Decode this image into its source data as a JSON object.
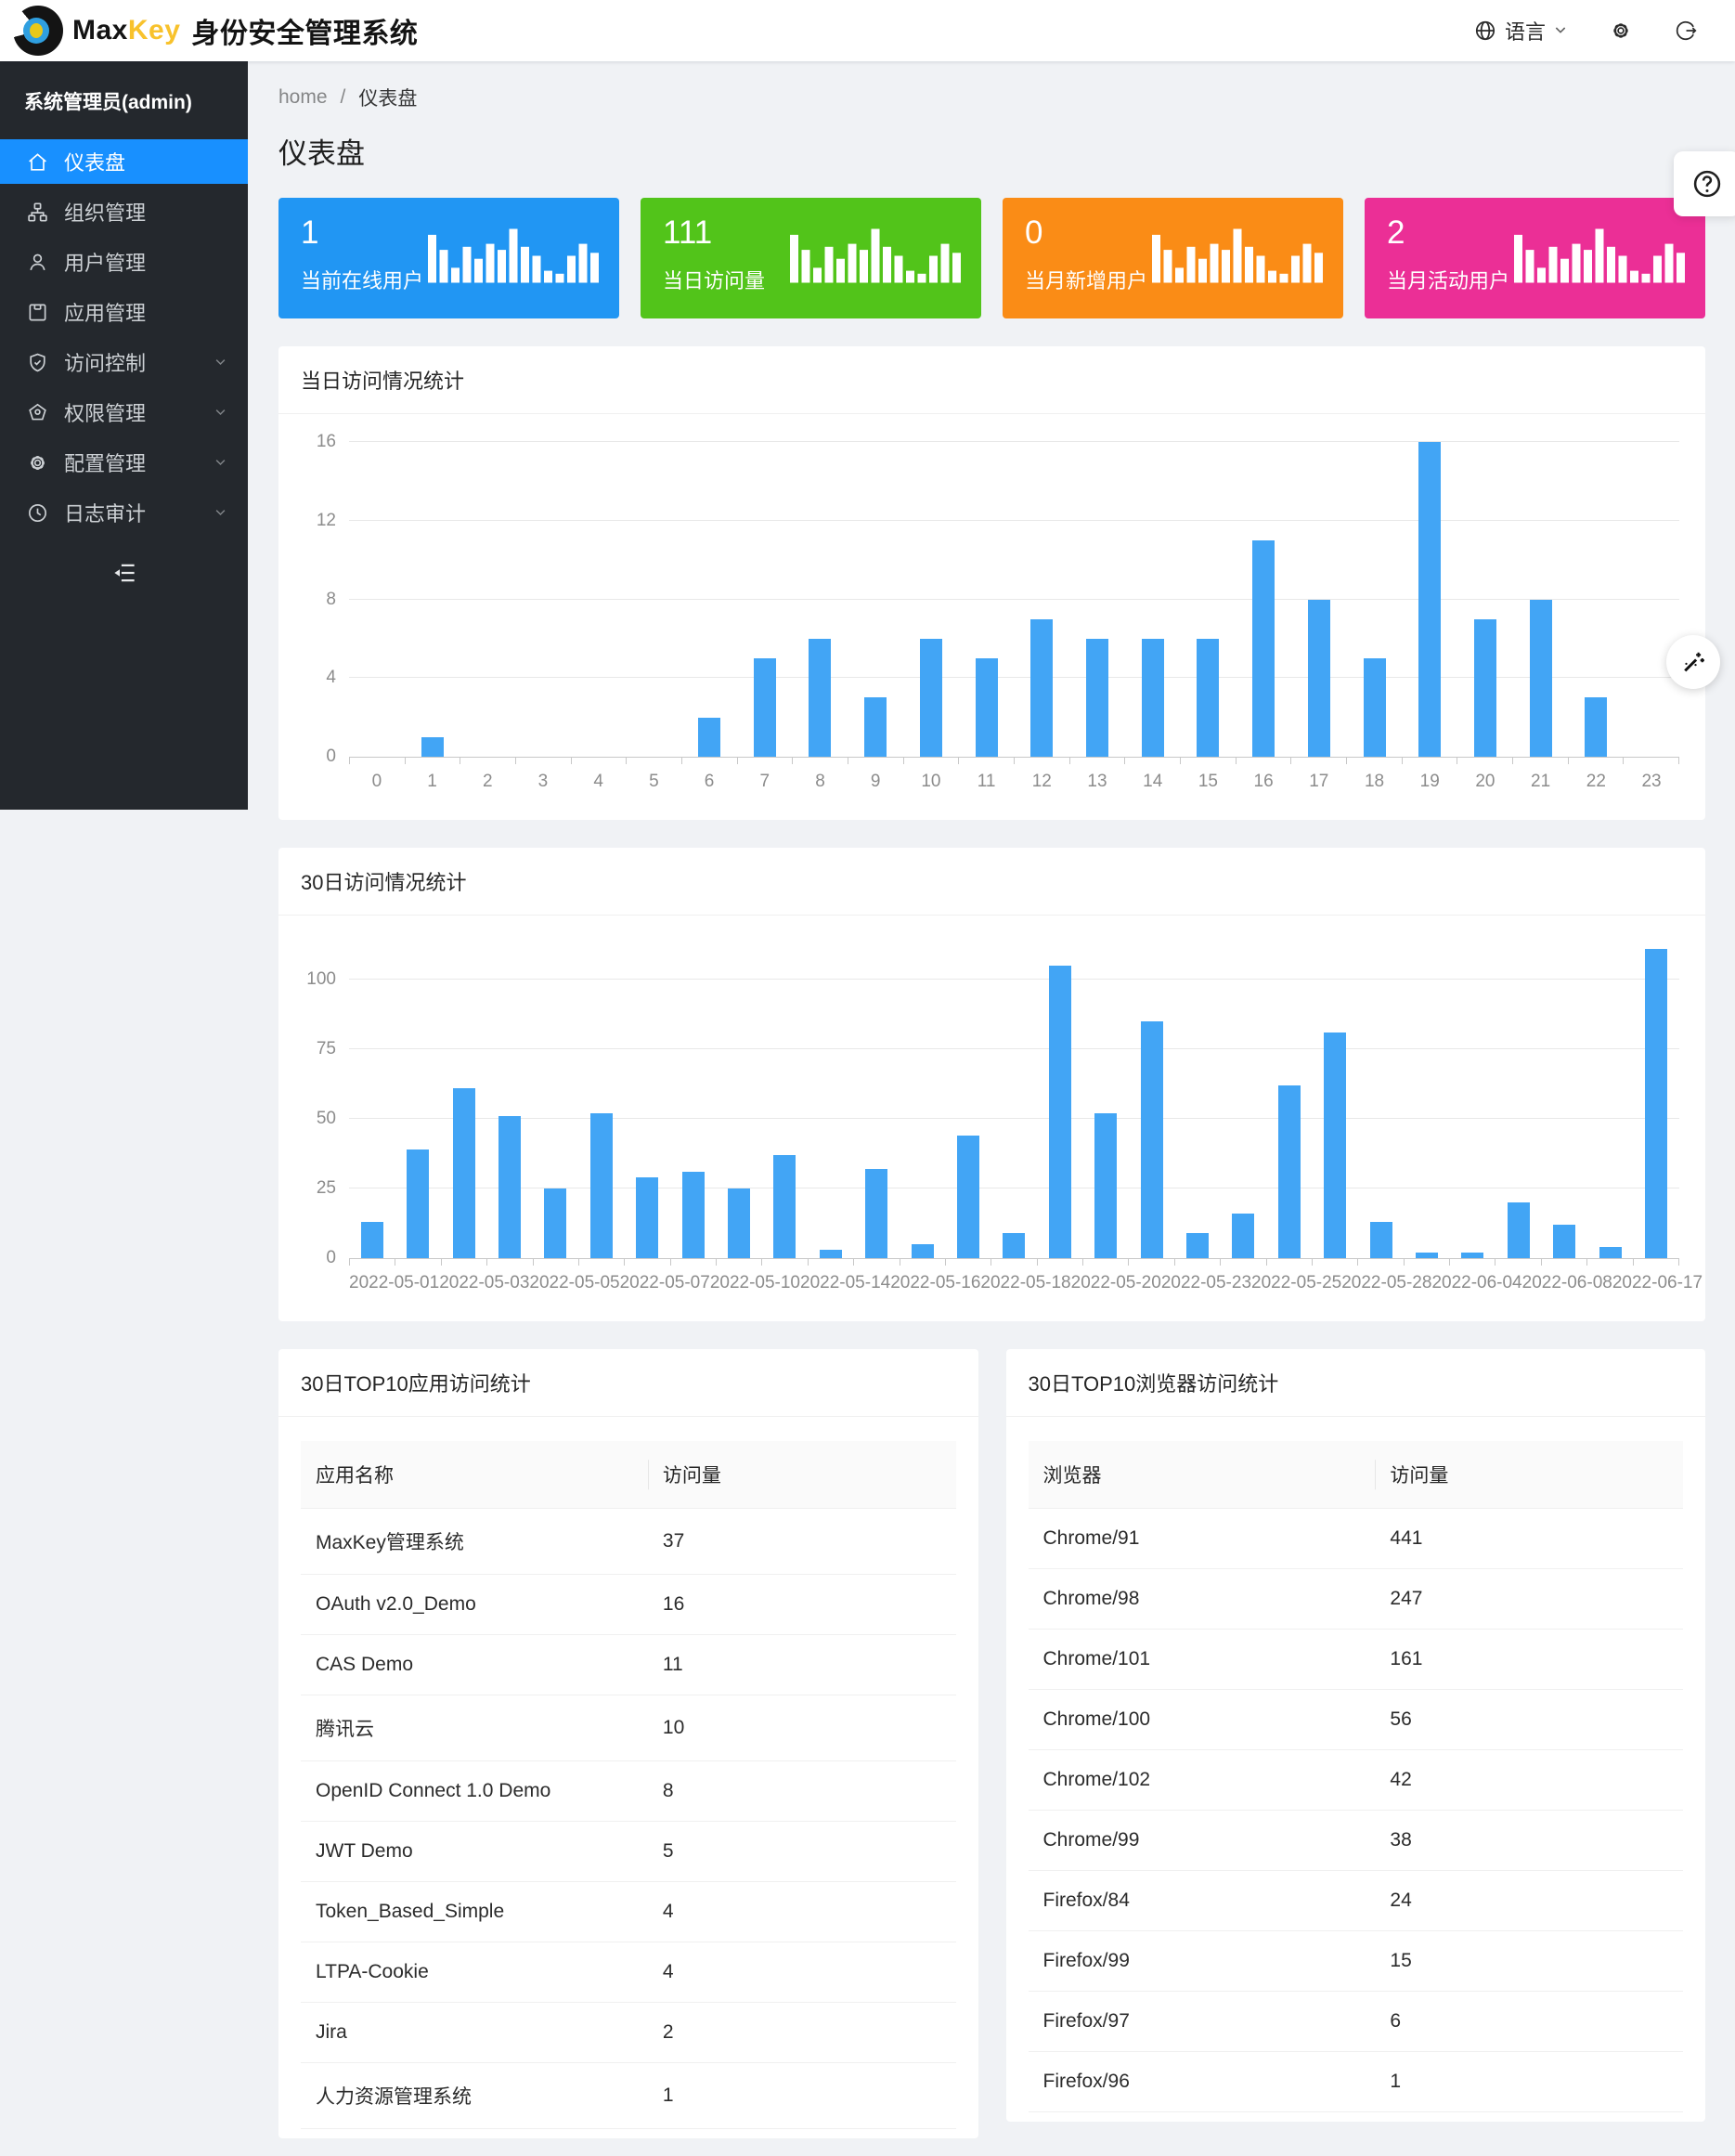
{
  "header": {
    "brand_max": "Max",
    "brand_key": "Key",
    "brand_subtitle": "身份安全管理系统",
    "language_label": "语言"
  },
  "sidebar": {
    "admin_label": "系统管理员(admin)",
    "items": [
      {
        "key": "dashboard",
        "label": "仪表盘",
        "icon": "home",
        "active": true,
        "expandable": false
      },
      {
        "key": "orgs",
        "label": "组织管理",
        "icon": "cluster",
        "active": false,
        "expandable": false
      },
      {
        "key": "users",
        "label": "用户管理",
        "icon": "user",
        "active": false,
        "expandable": false
      },
      {
        "key": "apps",
        "label": "应用管理",
        "icon": "appstore",
        "active": false,
        "expandable": false
      },
      {
        "key": "access",
        "label": "访问控制",
        "icon": "safety",
        "active": false,
        "expandable": true
      },
      {
        "key": "permissions",
        "label": "权限管理",
        "icon": "certificate",
        "active": false,
        "expandable": true
      },
      {
        "key": "config",
        "label": "配置管理",
        "icon": "setting",
        "active": false,
        "expandable": true
      },
      {
        "key": "audit",
        "label": "日志审计",
        "icon": "audit",
        "active": false,
        "expandable": true
      }
    ]
  },
  "breadcrumb": {
    "home": "home",
    "separator": "/",
    "current": "仪表盘"
  },
  "page_title": "仪表盘",
  "stat_cards": [
    {
      "value": "1",
      "label": "当前在线用户",
      "color": "#2196f3"
    },
    {
      "value": "111",
      "label": "当日访问量",
      "color": "#52c41a"
    },
    {
      "value": "0",
      "label": "当月新增用户",
      "color": "#fa8c16"
    },
    {
      "value": "2",
      "label": "当月活动用户",
      "color": "#eb2f96"
    }
  ],
  "chart_data": [
    {
      "type": "bar",
      "title": "当日访问情况统计",
      "categories": [
        "0",
        "1",
        "2",
        "3",
        "4",
        "5",
        "6",
        "7",
        "8",
        "9",
        "10",
        "11",
        "12",
        "13",
        "14",
        "15",
        "16",
        "17",
        "18",
        "19",
        "20",
        "21",
        "22",
        "23"
      ],
      "values": [
        0,
        1,
        0,
        0,
        0,
        0,
        2,
        5,
        6,
        3,
        6,
        5,
        7,
        6,
        6,
        6,
        11,
        8,
        5,
        16,
        7,
        8,
        3,
        0
      ],
      "xlabel": "",
      "ylabel": "",
      "yticks": [
        0,
        4,
        8,
        12,
        16
      ],
      "ymax": 16,
      "bar_color": "#42a5f5",
      "grid": true,
      "legend": "none"
    },
    {
      "type": "bar",
      "title": "30日访问情况统计",
      "categories": [
        "2022-05-01",
        "",
        "2022-05-03",
        "",
        "2022-05-05",
        "",
        "2022-05-07",
        "",
        "2022-05-10",
        "",
        "2022-05-14",
        "",
        "2022-05-16",
        "",
        "2022-05-18",
        "",
        "2022-05-20",
        "",
        "2022-05-23",
        "",
        "2022-05-25",
        "",
        "2022-05-28",
        "",
        "2022-06-04",
        "",
        "2022-06-08",
        "",
        "2022-06-17"
      ],
      "tick_labels": [
        "2022-05-01",
        "2022-05-03",
        "2022-05-05",
        "2022-05-07",
        "2022-05-10",
        "2022-05-14",
        "2022-05-16",
        "2022-05-18",
        "2022-05-20",
        "2022-05-23",
        "2022-05-25",
        "2022-05-28",
        "2022-06-04",
        "2022-06-08",
        "2022-06-17"
      ],
      "values": [
        13,
        39,
        61,
        51,
        25,
        52,
        29,
        31,
        25,
        37,
        3,
        32,
        5,
        44,
        9,
        105,
        52,
        85,
        9,
        16,
        62,
        81,
        13,
        2,
        2,
        20,
        12,
        4,
        111
      ],
      "xlabel": "",
      "ylabel": "",
      "yticks": [
        0,
        25,
        50,
        75,
        100
      ],
      "ymax": 113,
      "bar_color": "#42a5f5",
      "grid": true,
      "legend": "none"
    }
  ],
  "tables": [
    {
      "title": "30日TOP10应用访问统计",
      "columns": [
        "应用名称",
        "访问量"
      ],
      "rows": [
        [
          "MaxKey管理系统",
          "37"
        ],
        [
          "OAuth v2.0_Demo",
          "16"
        ],
        [
          "CAS Demo",
          "11"
        ],
        [
          "腾讯云",
          "10"
        ],
        [
          "OpenID Connect 1.0 Demo",
          "8"
        ],
        [
          "JWT Demo",
          "5"
        ],
        [
          "Token_Based_Simple",
          "4"
        ],
        [
          "LTPA-Cookie",
          "4"
        ],
        [
          "Jira",
          "2"
        ],
        [
          "人力资源管理系统",
          "1"
        ]
      ]
    },
    {
      "title": "30日TOP10浏览器访问统计",
      "columns": [
        "浏览器",
        "访问量"
      ],
      "rows": [
        [
          "Chrome/91",
          "441"
        ],
        [
          "Chrome/98",
          "247"
        ],
        [
          "Chrome/101",
          "161"
        ],
        [
          "Chrome/100",
          "56"
        ],
        [
          "Chrome/102",
          "42"
        ],
        [
          "Chrome/99",
          "38"
        ],
        [
          "Firefox/84",
          "24"
        ],
        [
          "Firefox/99",
          "15"
        ],
        [
          "Firefox/97",
          "6"
        ],
        [
          "Firefox/96",
          "1"
        ]
      ]
    }
  ]
}
